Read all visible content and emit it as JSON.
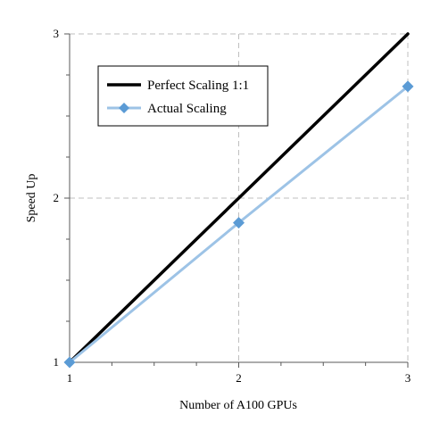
{
  "chart_data": {
    "type": "line",
    "xlabel": "Number of A100 GPUs",
    "ylabel": "Speed Up",
    "xlim": [
      1,
      3
    ],
    "ylim": [
      1,
      3
    ],
    "x_ticks": [
      "1",
      "2",
      "3"
    ],
    "y_ticks": [
      "1",
      "2",
      "3"
    ],
    "grid": "dashed, major ticks",
    "legend_position": "top-left",
    "series": [
      {
        "name": "Perfect Scaling 1:1",
        "x": [
          1,
          2,
          3
        ],
        "y": [
          1,
          2,
          3
        ],
        "color": "#000000",
        "marker": "none"
      },
      {
        "name": "Actual Scaling",
        "x": [
          1,
          2,
          3
        ],
        "y": [
          1,
          1.85,
          2.68
        ],
        "color": "#9dc3e6",
        "marker_color": "#5b9bd5",
        "marker": "diamond"
      }
    ]
  }
}
